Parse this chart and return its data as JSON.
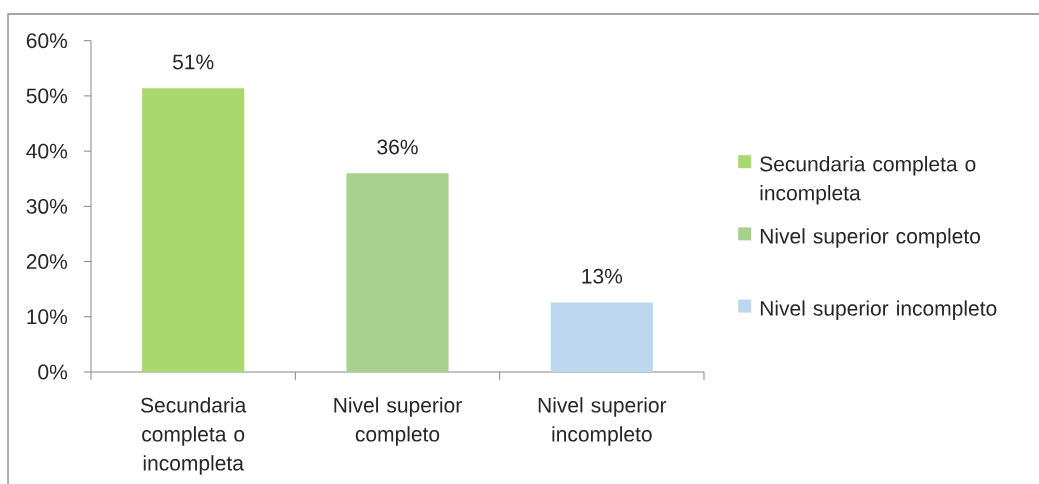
{
  "chart_data": {
    "type": "bar",
    "stacked": true,
    "categories": [
      "Secundaria completa o incompleta",
      "Nivel superior completo",
      "Nivel superior incompleto"
    ],
    "series": [
      {
        "name": "Secundaria completa o incompleta",
        "color": "#a9d86e",
        "values": [
          51.4,
          null,
          null
        ],
        "value_labels": [
          "51%",
          null,
          null
        ]
      },
      {
        "name": "Nivel superior completo",
        "color": "#a9d18e",
        "values": [
          null,
          36,
          null
        ],
        "value_labels": [
          null,
          "36%",
          null
        ]
      },
      {
        "name": "Nivel superior incompleto",
        "color": "#bdd7ee",
        "values": [
          null,
          null,
          12.6
        ],
        "value_labels": [
          null,
          null,
          "13%"
        ]
      }
    ],
    "ylim": [
      0,
      60
    ],
    "yticks": [
      {
        "value": 0,
        "label": "0%"
      },
      {
        "value": 10,
        "label": "10%"
      },
      {
        "value": 20,
        "label": "20%"
      },
      {
        "value": 30,
        "label": "30%"
      },
      {
        "value": 40,
        "label": "40%"
      },
      {
        "value": 50,
        "label": "50%"
      },
      {
        "value": 60,
        "label": "60%"
      }
    ],
    "legend": "right"
  }
}
